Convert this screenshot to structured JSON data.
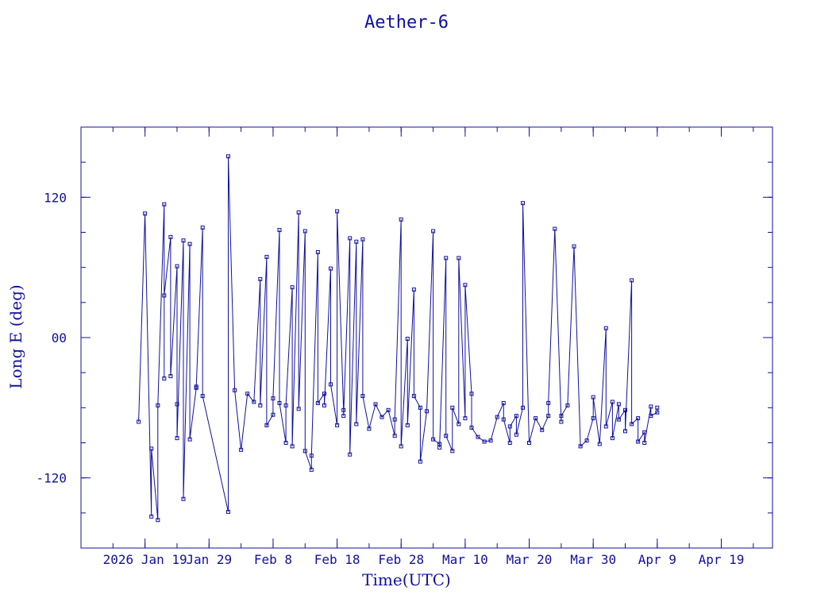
{
  "chart_data": {
    "type": "scatter",
    "title": "Aether-6",
    "xlabel": "Time(UTC)",
    "ylabel": "Long E (deg)",
    "xlim": [
      "2026-01-09",
      "2026-04-27"
    ],
    "ylim": [
      -180,
      180
    ],
    "xticks": [
      {
        "label": "2026 Jan 19",
        "date": "2026-01-19"
      },
      {
        "label": "Jan 29",
        "date": "2026-01-29"
      },
      {
        "label": "Feb  8",
        "date": "2026-02-08"
      },
      {
        "label": "Feb 18",
        "date": "2026-02-18"
      },
      {
        "label": "Feb 28",
        "date": "2026-02-28"
      },
      {
        "label": "Mar 10",
        "date": "2026-03-10"
      },
      {
        "label": "Mar 20",
        "date": "2026-03-20"
      },
      {
        "label": "Mar 30",
        "date": "2026-03-30"
      },
      {
        "label": "Apr  9",
        "date": "2026-04-09"
      },
      {
        "label": "Apr 19",
        "date": "2026-04-19"
      }
    ],
    "yticks": [
      {
        "label": "-120",
        "value": -120
      },
      {
        "label": "00",
        "value": 0
      },
      {
        "label": "120",
        "value": 120
      }
    ],
    "grid": false,
    "color": "#1010a0",
    "marker": "square",
    "series": [
      {
        "x": [
          "2026-01-18",
          "2026-01-19",
          "2026-01-20",
          "2026-01-20",
          "2026-01-21",
          "2026-01-21",
          "2026-01-22",
          "2026-01-22",
          "2026-01-22",
          "2026-01-23",
          "2026-01-23",
          "2026-01-24",
          "2026-01-24",
          "2026-01-24",
          "2026-01-25",
          "2026-01-25",
          "2026-01-26",
          "2026-01-26",
          "2026-01-27",
          "2026-01-27",
          "2026-01-28",
          "2026-01-28",
          "2026-02-01",
          "2026-02-01",
          "2026-02-02",
          "2026-02-03",
          "2026-02-04",
          "2026-02-05",
          "2026-02-06",
          "2026-02-06",
          "2026-02-07",
          "2026-02-07",
          "2026-02-08",
          "2026-02-08",
          "2026-02-09",
          "2026-02-09",
          "2026-02-10",
          "2026-02-10",
          "2026-02-11",
          "2026-02-11",
          "2026-02-12",
          "2026-02-12",
          "2026-02-13",
          "2026-02-13",
          "2026-02-14",
          "2026-02-14",
          "2026-02-15",
          "2026-02-15",
          "2026-02-16",
          "2026-02-16",
          "2026-02-17",
          "2026-02-17",
          "2026-02-18",
          "2026-02-18",
          "2026-02-19",
          "2026-02-19",
          "2026-02-20",
          "2026-02-20",
          "2026-02-21",
          "2026-02-21",
          "2026-02-22",
          "2026-02-22",
          "2026-02-23",
          "2026-02-24",
          "2026-02-25",
          "2026-02-26",
          "2026-02-27",
          "2026-02-27",
          "2026-02-28",
          "2026-02-28",
          "2026-03-01",
          "2026-03-01",
          "2026-03-02",
          "2026-03-02",
          "2026-03-03",
          "2026-03-03",
          "2026-03-04",
          "2026-03-05",
          "2026-03-05",
          "2026-03-06",
          "2026-03-06",
          "2026-03-07",
          "2026-03-07",
          "2026-03-08",
          "2026-03-08",
          "2026-03-09",
          "2026-03-09",
          "2026-03-10",
          "2026-03-10",
          "2026-03-11",
          "2026-03-11",
          "2026-03-12",
          "2026-03-13",
          "2026-03-14",
          "2026-03-15",
          "2026-03-16",
          "2026-03-16",
          "2026-03-17",
          "2026-03-17",
          "2026-03-18",
          "2026-03-18",
          "2026-03-19",
          "2026-03-19",
          "2026-03-20",
          "2026-03-21",
          "2026-03-22",
          "2026-03-23",
          "2026-03-23",
          "2026-03-24",
          "2026-03-25",
          "2026-03-25",
          "2026-03-26",
          "2026-03-27",
          "2026-03-28",
          "2026-03-29",
          "2026-03-30",
          "2026-03-30",
          "2026-03-31",
          "2026-04-01",
          "2026-04-01",
          "2026-04-02",
          "2026-04-02",
          "2026-04-03",
          "2026-04-03",
          "2026-04-04",
          "2026-04-04",
          "2026-04-05",
          "2026-04-05",
          "2026-04-06",
          "2026-04-06",
          "2026-04-07",
          "2026-04-07",
          "2026-04-08",
          "2026-04-08",
          "2026-04-09",
          "2026-04-09"
        ],
        "y": [
          -72,
          106,
          -153,
          -95,
          -156,
          -58,
          114,
          -35,
          36,
          86,
          -33,
          61,
          -57,
          -86,
          83,
          -138,
          80,
          -87,
          -43,
          -42,
          94,
          -50,
          -149,
          155,
          -45,
          -96,
          -48,
          -55,
          50,
          -58,
          69,
          -75,
          -66,
          -52,
          92,
          -56,
          -90,
          -58,
          43,
          -93,
          107,
          -61,
          91,
          -97,
          -113,
          -101,
          73,
          -56,
          -48,
          -58,
          59,
          -40,
          -75,
          108,
          -62,
          -67,
          85,
          -100,
          82,
          -74,
          84,
          -50,
          -78,
          -57,
          -68,
          -62,
          -84,
          -70,
          101,
          -93,
          -1,
          -75,
          41,
          -50,
          -60,
          -106,
          -63,
          91,
          -87,
          -91,
          -94,
          68,
          -84,
          -97,
          -60,
          -74,
          68,
          -69,
          45,
          -48,
          -77,
          -85,
          -89,
          -88,
          -68,
          -56,
          -70,
          -90,
          -76,
          -67,
          -83,
          -60,
          115,
          -90,
          -69,
          -79,
          -67,
          -56,
          93,
          -72,
          -67,
          -58,
          78,
          -93,
          -88,
          -69,
          -51,
          -91,
          8,
          -76,
          -55,
          -86,
          -57,
          -70,
          -62,
          -80,
          49,
          -74,
          -69,
          -89,
          -81,
          -90,
          -59,
          -67,
          -64,
          -60
        ]
      }
    ]
  }
}
